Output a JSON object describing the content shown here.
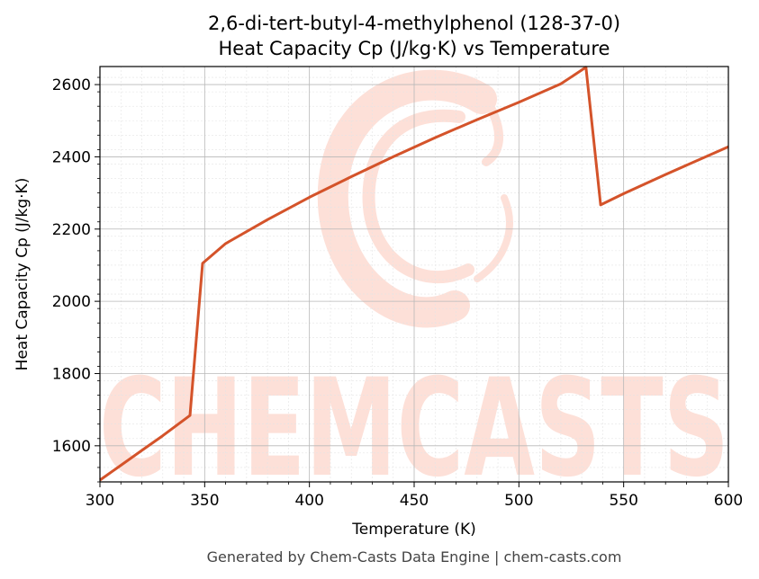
{
  "chart_data": {
    "type": "line",
    "title": "2,6-di-tert-butyl-4-methylphenol (128-37-0)",
    "subtitle": "Heat Capacity Cp (J/kg·K) vs Temperature",
    "xlabel": "Temperature (K)",
    "ylabel": "Heat Capacity Cp (J/kg·K)",
    "xlim": [
      300,
      600
    ],
    "ylim": [
      1500,
      2650
    ],
    "xticks": [
      300,
      350,
      400,
      450,
      500,
      550,
      600
    ],
    "yticks": [
      1600,
      1800,
      2000,
      2200,
      2400,
      2600
    ],
    "grid": true,
    "series": [
      {
        "color": "#d4532a",
        "x": [
          300,
          310,
          320,
          330,
          343,
          349,
          360,
          380,
          400,
          420,
          440,
          460,
          480,
          500,
          520,
          532,
          539,
          550,
          570,
          600
        ],
        "y": [
          1505,
          1546,
          1587,
          1628,
          1684,
          2105,
          2160,
          2226,
          2288,
          2345,
          2400,
          2453,
          2503,
          2551,
          2602,
          2648,
          2267,
          2298,
          2351,
          2428
        ]
      }
    ]
  },
  "watermark": {
    "text": "CHEMCASTS",
    "color": "#fde0d8"
  },
  "footer": "Generated by Chem-Casts Data Engine | chem-casts.com"
}
